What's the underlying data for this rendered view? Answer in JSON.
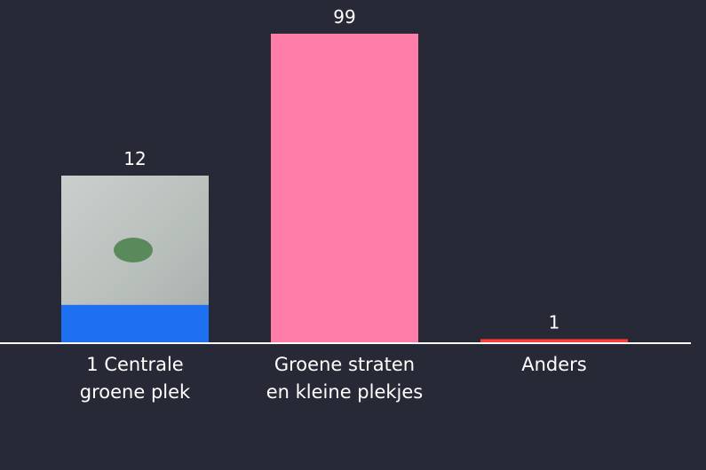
{
  "chart_data": {
    "type": "bar",
    "categories": [
      "1 Centrale groene plek",
      "Groene straten en kleine plekjes",
      "Anders"
    ],
    "values": [
      12,
      99,
      1
    ],
    "colors": [
      "#1f6ff2",
      "#ff7ea9",
      "#ff3d35"
    ]
  }
}
